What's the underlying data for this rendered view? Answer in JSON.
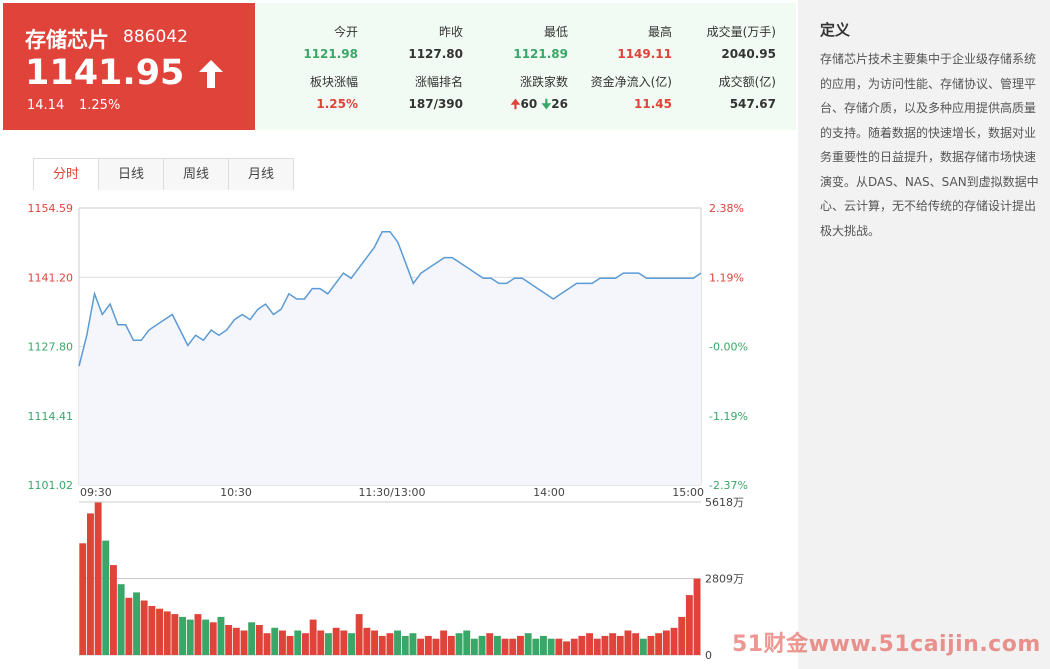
{
  "header": {
    "name": "存储芯片",
    "code": "886042",
    "price": "1141.95",
    "change": "14.14",
    "change_pct": "1.25%"
  },
  "stats": [
    {
      "label": "今开",
      "value": "1121.98",
      "color": "green"
    },
    {
      "label": "昨收",
      "value": "1127.80",
      "color": "dark"
    },
    {
      "label": "最低",
      "value": "1121.89",
      "color": "green"
    },
    {
      "label": "最高",
      "value": "1149.11",
      "color": "red"
    },
    {
      "label": "成交量(万手)",
      "value": "2040.95",
      "color": "dark"
    },
    {
      "label": "板块涨幅",
      "value": "1.25%",
      "color": "red"
    },
    {
      "label": "涨幅排名",
      "value": "187/390",
      "color": "dark"
    },
    {
      "label": "涨跌家数",
      "value": "",
      "up": "60",
      "down": "26",
      "color": "dark"
    },
    {
      "label": "资金净流入(亿)",
      "value": "11.45",
      "color": "red"
    },
    {
      "label": "成交额(亿)",
      "value": "547.67",
      "color": "dark"
    }
  ],
  "tabs": [
    "分时",
    "日线",
    "周线",
    "月线"
  ],
  "active_tab": 0,
  "sidebar": {
    "title": "定义",
    "text": "存储芯片技术主要集中于企业级存储系统的应用，为访问性能、存储协议、管理平台、存储介质，以及多种应用提供高质量的支持。随着数据的快速增长，数据对业务重要性的日益提升，数据存储市场快速演变。从DAS、NAS、SAN到虚拟数据中心、云计算，无不给传统的存储设计提出极大挑战。"
  },
  "watermark": "51财金www.51caijin.com",
  "colors": {
    "red": "#e0433a",
    "green": "#3aa768",
    "line": "#5b9bd5",
    "area": "#f4f6fc"
  },
  "chart_data": {
    "type": "line",
    "price_axis_labels": [
      "1154.59",
      "1141.20",
      "1127.80",
      "1114.41",
      "1101.02"
    ],
    "pct_axis_labels": [
      "2.38%",
      "1.19%",
      "-0.00%",
      "-1.19%",
      "-2.37%"
    ],
    "ylim": [
      1101.02,
      1154.59
    ],
    "prev_close": 1127.8,
    "time_labels": [
      "09:30",
      "10:30",
      "11:30/13:00",
      "14:00",
      "15:00"
    ],
    "volume_axis_labels": [
      "5618万",
      "2809万",
      "0"
    ],
    "volume_max": 5618,
    "price": [
      1124,
      1130,
      1138,
      1134,
      1136,
      1132,
      1132,
      1129,
      1129,
      1131,
      1132,
      1133,
      1134,
      1131,
      1128,
      1130,
      1129,
      1131,
      1130,
      1131,
      1133,
      1134,
      1133,
      1135,
      1136,
      1134,
      1135,
      1138,
      1137,
      1137,
      1139,
      1139,
      1138,
      1140,
      1142,
      1141,
      1143,
      1145,
      1147,
      1150,
      1150,
      1148,
      1144,
      1140,
      1142,
      1143,
      1144,
      1145,
      1145,
      1144,
      1143,
      1142,
      1141,
      1141,
      1140,
      1140,
      1141,
      1141,
      1140,
      1139,
      1138,
      1137,
      1138,
      1139,
      1140,
      1140,
      1140,
      1141,
      1141,
      1141,
      1142,
      1142,
      1142,
      1141,
      1141,
      1141,
      1141,
      1141,
      1141,
      1141,
      1142
    ],
    "volume": [
      4100,
      5200,
      5600,
      4200,
      3300,
      2600,
      2100,
      2300,
      2000,
      1800,
      1700,
      1600,
      1500,
      1400,
      1300,
      1500,
      1300,
      1200,
      1400,
      1100,
      1000,
      900,
      1200,
      1100,
      800,
      1000,
      900,
      700,
      900,
      800,
      1300,
      900,
      800,
      1000,
      900,
      800,
      1500,
      1000,
      900,
      700,
      800,
      900,
      700,
      800,
      600,
      700,
      600,
      900,
      700,
      800,
      900,
      600,
      700,
      800,
      700,
      600,
      600,
      700,
      800,
      600,
      700,
      600,
      600,
      500,
      600,
      700,
      800,
      600,
      700,
      800,
      700,
      900,
      800,
      600,
      700,
      800,
      900,
      1000,
      1400,
      2200,
      2800
    ]
  }
}
